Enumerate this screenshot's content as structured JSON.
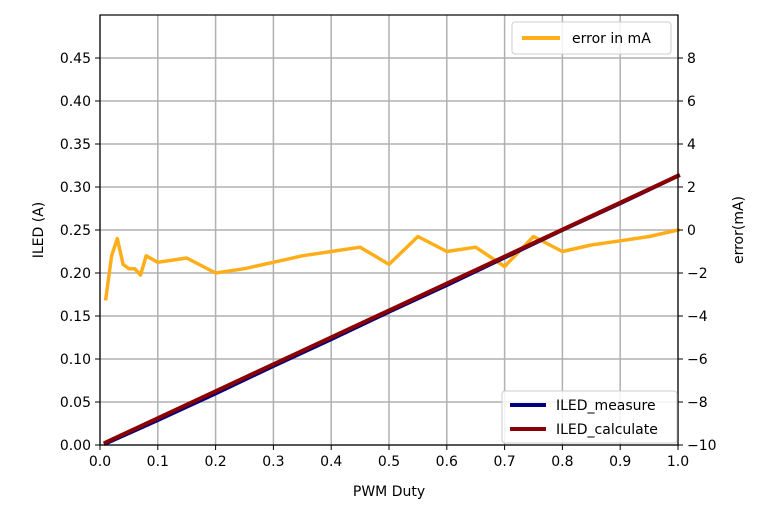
{
  "chart_data": {
    "type": "line",
    "xlabel": "PWM Duty",
    "ylabel": "ILED (A)",
    "y2label": "error(mA)",
    "xlim": [
      0.0,
      1.0
    ],
    "ylim": [
      0.0,
      0.5
    ],
    "y2lim": [
      -10,
      10
    ],
    "xticks": [
      "0.0",
      "0.1",
      "0.2",
      "0.3",
      "0.4",
      "0.5",
      "0.6",
      "0.7",
      "0.8",
      "0.9",
      "1.0"
    ],
    "yticks": [
      "0.00",
      "0.05",
      "0.10",
      "0.15",
      "0.20",
      "0.25",
      "0.30",
      "0.35",
      "0.40",
      "0.45"
    ],
    "y2ticks": [
      "−10",
      "−8",
      "−6",
      "−4",
      "−2",
      "0",
      "2",
      "4",
      "6",
      "8"
    ],
    "grid": true,
    "series": [
      {
        "name": "ILED_measure",
        "axis": "left",
        "color": "#000080",
        "x": [
          0.01,
          0.05,
          0.1,
          0.2,
          0.3,
          0.4,
          0.5,
          0.6,
          0.7,
          0.8,
          0.9,
          1.0
        ],
        "values": [
          0.002,
          0.014,
          0.029,
          0.06,
          0.092,
          0.123,
          0.155,
          0.186,
          0.218,
          0.25,
          0.281,
          0.313
        ]
      },
      {
        "name": "ILED_calculate",
        "axis": "left",
        "color": "#8b0000",
        "x": [
          0.01,
          1.0
        ],
        "values": [
          0.003,
          0.313
        ]
      },
      {
        "name": "error in mA",
        "axis": "right",
        "color": "#ffae1a",
        "x": [
          0.01,
          0.02,
          0.03,
          0.04,
          0.05,
          0.06,
          0.07,
          0.08,
          0.1,
          0.15,
          0.2,
          0.25,
          0.3,
          0.35,
          0.4,
          0.45,
          0.5,
          0.55,
          0.6,
          0.65,
          0.7,
          0.75,
          0.8,
          0.85,
          0.9,
          0.95,
          1.0
        ],
        "values": [
          -3.2,
          -1.2,
          -0.4,
          -1.6,
          -1.8,
          -1.8,
          -2.1,
          -1.2,
          -1.5,
          -1.3,
          -2.0,
          -1.8,
          -1.5,
          -1.2,
          -1.0,
          -0.8,
          -1.6,
          -0.3,
          -1.0,
          -0.8,
          -1.7,
          -0.3,
          -1.0,
          -0.7,
          -0.5,
          -0.3,
          0.0
        ]
      }
    ],
    "legends": [
      {
        "placement": "top-right",
        "entries": [
          "error in mA"
        ]
      },
      {
        "placement": "bottom-right",
        "entries": [
          "ILED_measure",
          "ILED_calculate"
        ]
      }
    ]
  }
}
